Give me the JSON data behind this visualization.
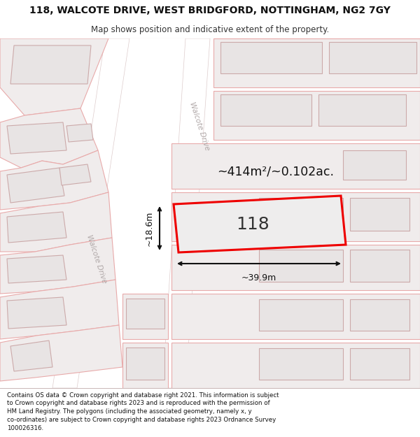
{
  "title_line1": "118, WALCOTE DRIVE, WEST BRIDGFORD, NOTTINGHAM, NG2 7GY",
  "title_line2": "Map shows position and indicative extent of the property.",
  "footer_line1": "Contains OS data © Crown copyright and database right 2021. This information is subject",
  "footer_line2": "to Crown copyright and database rights 2023 and is reproduced with the permission of",
  "footer_line3": "HM Land Registry. The polygons (including the associated geometry, namely x, y",
  "footer_line4": "co-ordinates) are subject to Crown copyright and database rights 2023 Ordnance Survey",
  "footer_line5": "100026316.",
  "area_label": "~414m²/~0.102ac.",
  "width_label": "~39.9m",
  "height_label": "~18.6m",
  "property_number": "118",
  "road_label": "Walcote Drive",
  "map_bg": "#f9f6f6",
  "building_fill": "#e8e4e4",
  "building_edge": "#e8aaaa",
  "parcel_fill": "#f0ecec",
  "parcel_edge": "#e8aaaa",
  "road_fill": "#ffffff",
  "plot_edge": "#ee0000",
  "plot_fill": "#eeeded",
  "dim_color": "#111111",
  "title_color": "#111111",
  "footer_color": "#111111"
}
